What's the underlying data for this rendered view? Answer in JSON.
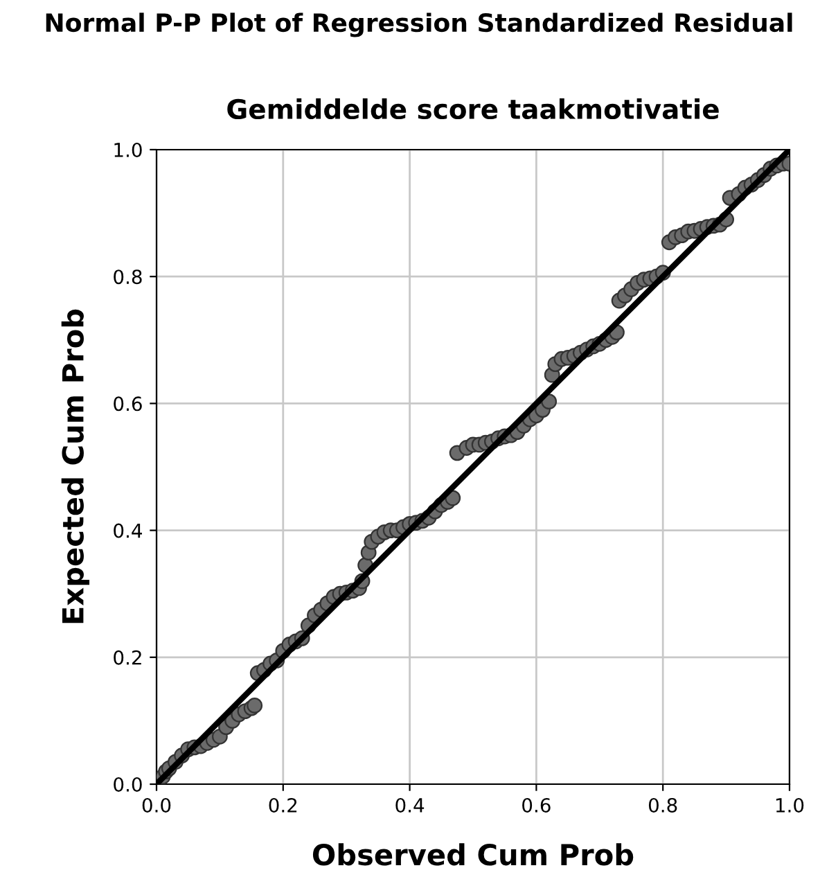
{
  "chart_data": {
    "type": "scatter",
    "title": "Normal P-P Plot of Regression Standardized Residual",
    "subtitle": "Gemiddelde score taakmotivatie",
    "xlabel": "Observed Cum Prob",
    "ylabel": "Expected Cum Prob",
    "series": [
      {
        "color": "#6b6b6b",
        "marker": "circle",
        "x": [
          0.01,
          0.015,
          0.02,
          0.03,
          0.04,
          0.05,
          0.06,
          0.07,
          0.08,
          0.09,
          0.1,
          0.11,
          0.12,
          0.13,
          0.14,
          0.15,
          0.155,
          0.16,
          0.17,
          0.18,
          0.19,
          0.2,
          0.21,
          0.22,
          0.23,
          0.24,
          0.25,
          0.26,
          0.27,
          0.28,
          0.29,
          0.3,
          0.31,
          0.32,
          0.325,
          0.33,
          0.335,
          0.34,
          0.35,
          0.36,
          0.37,
          0.38,
          0.39,
          0.4,
          0.41,
          0.42,
          0.43,
          0.44,
          0.45,
          0.46,
          0.468,
          0.475,
          0.49,
          0.5,
          0.51,
          0.52,
          0.53,
          0.54,
          0.55,
          0.56,
          0.57,
          0.58,
          0.59,
          0.6,
          0.61,
          0.62,
          0.625,
          0.63,
          0.64,
          0.65,
          0.66,
          0.67,
          0.68,
          0.69,
          0.7,
          0.71,
          0.72,
          0.727,
          0.731,
          0.74,
          0.75,
          0.76,
          0.77,
          0.78,
          0.79,
          0.8,
          0.81,
          0.82,
          0.83,
          0.84,
          0.85,
          0.86,
          0.87,
          0.88,
          0.89,
          0.9,
          0.906,
          0.92,
          0.93,
          0.94,
          0.95,
          0.96,
          0.97,
          0.98,
          0.99,
          1.0
        ],
        "values": [
          0.012,
          0.02,
          0.025,
          0.035,
          0.045,
          0.055,
          0.058,
          0.06,
          0.065,
          0.07,
          0.075,
          0.09,
          0.1,
          0.11,
          0.115,
          0.12,
          0.124,
          0.175,
          0.18,
          0.19,
          0.195,
          0.21,
          0.22,
          0.225,
          0.23,
          0.25,
          0.266,
          0.275,
          0.285,
          0.295,
          0.3,
          0.302,
          0.305,
          0.309,
          0.32,
          0.345,
          0.365,
          0.382,
          0.39,
          0.397,
          0.4,
          0.4,
          0.405,
          0.41,
          0.412,
          0.415,
          0.42,
          0.43,
          0.44,
          0.445,
          0.451,
          0.522,
          0.53,
          0.535,
          0.535,
          0.538,
          0.54,
          0.545,
          0.548,
          0.55,
          0.555,
          0.565,
          0.575,
          0.581,
          0.59,
          0.603,
          0.645,
          0.662,
          0.67,
          0.672,
          0.675,
          0.68,
          0.685,
          0.69,
          0.694,
          0.7,
          0.705,
          0.712,
          0.762,
          0.77,
          0.78,
          0.79,
          0.795,
          0.797,
          0.8,
          0.806,
          0.854,
          0.862,
          0.865,
          0.871,
          0.872,
          0.875,
          0.878,
          0.88,
          0.882,
          0.89,
          0.924,
          0.93,
          0.94,
          0.945,
          0.952,
          0.96,
          0.97,
          0.975,
          0.978,
          0.978
        ]
      },
      {
        "type": "line",
        "color": "#000000",
        "marker": "none",
        "x": [
          0,
          1
        ],
        "values": [
          0,
          1
        ]
      }
    ],
    "xlim": [
      0,
      1
    ],
    "ylim": [
      0,
      1
    ],
    "xticks": [
      {
        "value": 0,
        "label": "0.0"
      },
      0.2,
      0.4,
      0.6,
      0.8,
      {
        "value": 1,
        "label": "1.0"
      }
    ],
    "yticks": [
      {
        "value": 0,
        "label": "0.0"
      },
      0.2,
      0.4,
      0.6,
      0.8,
      {
        "value": 1,
        "label": "1.0"
      }
    ],
    "grid": true,
    "legend": false
  }
}
